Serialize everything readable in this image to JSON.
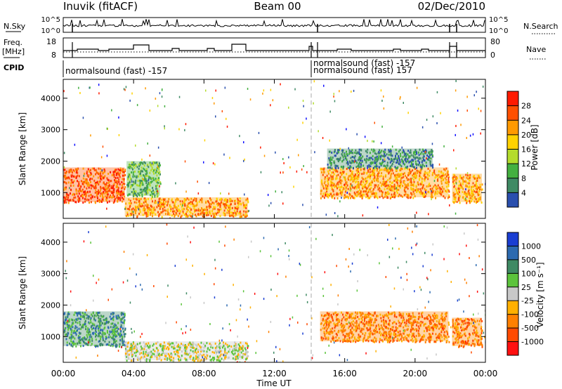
{
  "header": {
    "title_left": "Inuvik (fitACF)",
    "title_center": "Beam 00",
    "title_right": "02/Dec/2010"
  },
  "summary": {
    "nsky_label": "N.Sky",
    "nsky_ticks": [
      "10^5",
      "10^0"
    ],
    "nsearch_label": "N.Search",
    "nsearch_ticks": [
      "10^5",
      "10^0"
    ],
    "freq_label": "Freq.",
    "freq_unit": "[MHz]",
    "freq_ticks": [
      "18",
      "8"
    ],
    "nave_label": "Nave",
    "nave_ticks": [
      "80",
      "0"
    ],
    "cpid_label": "CPID",
    "cpid_texts": [
      "normalsound (fast) -157",
      "normalsound (fast) -157",
      "normalsound (fast) 157"
    ]
  },
  "panels": {
    "xlabel": "Time UT",
    "ylabel": "Slant Range [km]",
    "x_ticks": [
      "00:00",
      "04:00",
      "08:00",
      "12:00",
      "16:00",
      "20:00",
      "00:00"
    ],
    "y_ticks": [
      "4000",
      "3000",
      "2000",
      "1000"
    ]
  },
  "colorbars": {
    "power_label": "Power [dB]",
    "power_ticks": [
      "28",
      "24",
      "20",
      "16",
      "12",
      "8",
      "4"
    ],
    "velocity_label": "Velocity [m s⁻¹]",
    "velocity_ticks": [
      "1000",
      "500",
      "100",
      "25",
      "-25",
      "-100",
      "-500",
      "-1000"
    ]
  },
  "chart_data": [
    {
      "type": "heatmap",
      "title": "",
      "xlabel": "Time UT",
      "ylabel": "Slant Range [km]",
      "xlim": [
        0,
        24
      ],
      "ylim": [
        180,
        4600
      ],
      "colorbar_label": "Power [dB]",
      "colorbar_range": [
        0,
        30
      ],
      "colors": [
        "#1010ff",
        "#2a4fae",
        "#3f8a64",
        "#44b040",
        "#b4dc2c",
        "#ffd200",
        "#ff9a00",
        "#ff5000",
        "#ff1a00"
      ],
      "regions": [
        {
          "t": [
            0.0,
            3.5
          ],
          "r": [
            700,
            1800
          ],
          "level": 27
        },
        {
          "t": [
            3.5,
            10.5
          ],
          "r": [
            250,
            850
          ],
          "level": 24
        },
        {
          "t": [
            3.6,
            5.5
          ],
          "r": [
            900,
            2000
          ],
          "level": 10
        },
        {
          "t": [
            14.6,
            21.9
          ],
          "r": [
            850,
            1800
          ],
          "level": 24
        },
        {
          "t": [
            15.0,
            21.0
          ],
          "r": [
            1800,
            2400
          ],
          "level": 9
        },
        {
          "t": [
            22.1,
            23.8
          ],
          "r": [
            700,
            1600
          ],
          "level": 22
        }
      ]
    },
    {
      "type": "heatmap",
      "title": "",
      "xlabel": "Time UT",
      "ylabel": "Slant Range [km]",
      "xlim": [
        0,
        24
      ],
      "ylim": [
        180,
        4600
      ],
      "colorbar_label": "Velocity [m s⁻¹]",
      "colorbar_range": [
        -1000,
        1000
      ],
      "colors": [
        "#1a3ed2",
        "#2c6ab0",
        "#3f8a64",
        "#5cc43c",
        "#c8c8c8",
        "#ffb000",
        "#ff8000",
        "#ff4a00",
        "#ff1010"
      ],
      "regions": [
        {
          "t": [
            0.0,
            3.5
          ],
          "r": [
            700,
            1800
          ],
          "level": 200
        },
        {
          "t": [
            3.5,
            10.5
          ],
          "r": [
            250,
            850
          ],
          "level": 0
        },
        {
          "t": [
            14.6,
            21.9
          ],
          "r": [
            850,
            1800
          ],
          "level": -150
        },
        {
          "t": [
            22.1,
            23.8
          ],
          "r": [
            700,
            1600
          ],
          "level": -100
        }
      ]
    }
  ]
}
